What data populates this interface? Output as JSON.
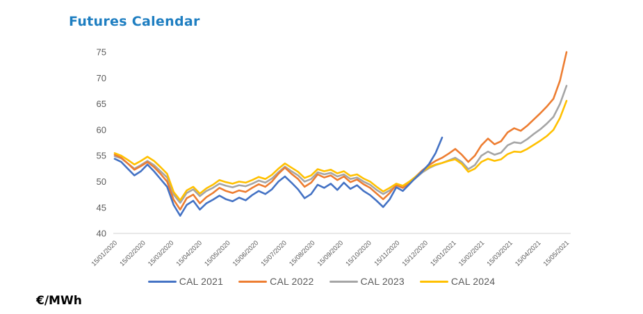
{
  "chart": {
    "title": "Futures Calendar",
    "title_color": "#1E7EC1",
    "unit_label": "€/MWh"
  },
  "chart_data": {
    "type": "line",
    "title": "Futures Calendar",
    "ylabel": "€/MWh",
    "xlabel": "",
    "ylim": [
      40,
      75
    ],
    "y_ticks": [
      40,
      45,
      50,
      55,
      60,
      65,
      70,
      75
    ],
    "x_tick_labels": [
      "15/01/2020",
      "15/02/2020",
      "15/03/2020",
      "15/04/2020",
      "15/05/2020",
      "15/06/2020",
      "15/07/2020",
      "15/08/2020",
      "15/09/2020",
      "15/10/2020",
      "15/11/2020",
      "15/12/2020",
      "15/01/2021",
      "15/02/2021",
      "15/03/2021",
      "15/04/2021",
      "15/05/2021"
    ],
    "x_resolution": "weekly samples starting 15/01/2020",
    "grid": false,
    "legend_position": "bottom",
    "axis_color": "#D9D9D9",
    "tick_label_color": "#595959",
    "series": [
      {
        "name": "CAL 2021",
        "color": "#4472C4",
        "values": [
          54.4,
          53.8,
          52.5,
          51.2,
          52.0,
          53.3,
          52.0,
          50.5,
          49.0,
          45.5,
          43.4,
          45.5,
          46.3,
          44.6,
          45.8,
          46.5,
          47.3,
          46.6,
          46.2,
          46.9,
          46.4,
          47.4,
          48.2,
          47.6,
          48.5,
          50.0,
          51.0,
          49.8,
          48.5,
          46.8,
          47.6,
          49.4,
          48.8,
          49.6,
          48.4,
          49.8,
          48.6,
          49.3,
          48.2,
          47.4,
          46.3,
          45.1,
          46.6,
          48.9,
          48.2,
          49.5,
          50.8,
          52.0,
          53.4,
          55.5,
          58.5
        ]
      },
      {
        "name": "CAL 2022",
        "color": "#ED7D31",
        "values": [
          55.2,
          54.6,
          53.5,
          52.3,
          53.0,
          53.8,
          52.8,
          51.5,
          50.0,
          46.5,
          44.6,
          46.8,
          47.5,
          45.8,
          47.0,
          47.8,
          48.8,
          48.2,
          47.8,
          48.3,
          48.0,
          48.8,
          49.5,
          49.0,
          50.0,
          51.5,
          52.7,
          51.5,
          50.5,
          49.0,
          49.8,
          51.4,
          50.8,
          51.2,
          50.3,
          51.0,
          49.9,
          50.4,
          49.5,
          48.8,
          47.7,
          46.6,
          47.8,
          49.4,
          48.8,
          49.9,
          51.0,
          52.2,
          53.2,
          54.0,
          54.6,
          55.4,
          56.3,
          55.2,
          53.8,
          55.0,
          57.0,
          58.3,
          57.2,
          57.8,
          59.5,
          60.3,
          59.8,
          60.8,
          62.0,
          63.2,
          64.5,
          66.0,
          69.5,
          75.0
        ]
      },
      {
        "name": "CAL 2023",
        "color": "#A5A5A5",
        "values": [
          54.9,
          54.5,
          53.5,
          52.5,
          53.2,
          54.0,
          53.2,
          52.0,
          50.8,
          47.5,
          45.9,
          47.8,
          48.5,
          47.2,
          48.2,
          48.8,
          49.6,
          49.2,
          48.9,
          49.3,
          49.1,
          49.6,
          50.2,
          49.8,
          50.6,
          51.8,
          52.9,
          52.0,
          51.2,
          50.0,
          50.5,
          51.8,
          51.4,
          51.7,
          51.0,
          51.4,
          50.5,
          50.8,
          50.0,
          49.4,
          48.4,
          47.6,
          48.3,
          49.2,
          48.8,
          49.7,
          50.7,
          51.8,
          52.6,
          53.2,
          53.6,
          54.1,
          54.6,
          53.8,
          52.4,
          53.2,
          55.0,
          55.8,
          55.2,
          55.6,
          57.0,
          57.6,
          57.4,
          58.2,
          59.2,
          60.1,
          61.2,
          62.5,
          65.0,
          68.5
        ]
      },
      {
        "name": "CAL 2024",
        "color": "#FFC000",
        "values": [
          55.5,
          55.0,
          54.2,
          53.3,
          54.0,
          54.8,
          54.0,
          52.8,
          51.5,
          48.0,
          46.4,
          48.3,
          49.0,
          47.7,
          48.7,
          49.4,
          50.3,
          49.9,
          49.6,
          50.0,
          49.8,
          50.3,
          50.9,
          50.5,
          51.3,
          52.5,
          53.5,
          52.7,
          51.9,
          50.7,
          51.2,
          52.4,
          52.0,
          52.3,
          51.6,
          52.0,
          51.1,
          51.4,
          50.6,
          50.0,
          49.0,
          48.1,
          48.8,
          49.6,
          49.2,
          50.0,
          51.0,
          52.0,
          52.8,
          53.3,
          53.6,
          54.0,
          54.3,
          53.4,
          51.9,
          52.5,
          53.8,
          54.4,
          54.0,
          54.3,
          55.3,
          55.8,
          55.7,
          56.3,
          57.1,
          57.9,
          58.8,
          60.0,
          62.3,
          65.6
        ]
      }
    ]
  }
}
